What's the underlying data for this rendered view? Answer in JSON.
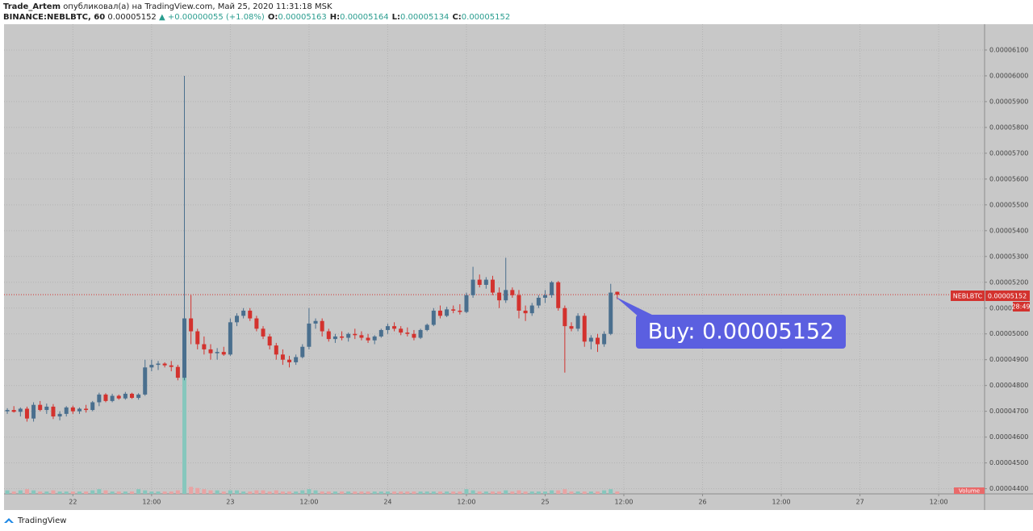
{
  "chart_data": {
    "type": "candlestick",
    "author": "Trade_Artem",
    "published": "опубликовал(а) на TradingView.com, Май 25, 2020 11:31:18 MSK",
    "symbol": "BINANCE:NEBLBTC, 60",
    "last": "0.00005152",
    "change": "▲ +0.00000055 (+1.08%)",
    "ohlc_labels": [
      {
        "label": "O:",
        "value": "0.00005163"
      },
      {
        "label": "H:",
        "value": "0.00005164"
      },
      {
        "label": "L:",
        "value": "0.00005134"
      },
      {
        "label": "C:",
        "value": "0.00005152"
      }
    ],
    "price_tag": {
      "symbol": "NEBLBTC",
      "price": "0.00005152",
      "countdown": "28:49"
    },
    "price_line": 5.152e-05,
    "annotation": "Buy: 0.00005152",
    "volume_label": "Volume",
    "brand": "TradingView",
    "up_color": "#4a6f8e",
    "down_color": "#d3322e",
    "volume_up_color": "#86c7bd",
    "volume_down_color": "#e9a3a3",
    "grid": true,
    "xlim": [
      -0.5,
      149
    ],
    "xticks": [
      {
        "value": 10,
        "label": "22"
      },
      {
        "value": 22,
        "label": "12:00"
      },
      {
        "value": 34,
        "label": "23"
      },
      {
        "value": 46,
        "label": "12:00"
      },
      {
        "value": 58,
        "label": "24"
      },
      {
        "value": 70,
        "label": "12:00"
      },
      {
        "value": 82,
        "label": "25"
      },
      {
        "value": 94,
        "label": "12:00"
      },
      {
        "value": 106,
        "label": "26"
      },
      {
        "value": 118,
        "label": "12:00"
      },
      {
        "value": 130,
        "label": "27"
      },
      {
        "value": 142,
        "label": "12:00"
      }
    ],
    "ylim": [
      4.38e-05,
      6.2e-05
    ],
    "yticks": [
      {
        "value": 4.4e-05,
        "label": "0.00004400"
      },
      {
        "value": 4.5e-05,
        "label": "0.00004500"
      },
      {
        "value": 4.6e-05,
        "label": "0.00004600"
      },
      {
        "value": 4.7e-05,
        "label": "0.00004700"
      },
      {
        "value": 4.8e-05,
        "label": "0.00004800"
      },
      {
        "value": 4.9e-05,
        "label": "0.00004900"
      },
      {
        "value": 5e-05,
        "label": "0.00005000"
      },
      {
        "value": 5.1e-05,
        "label": "0.00005100"
      },
      {
        "value": 5.2e-05,
        "label": "0.00005200"
      },
      {
        "value": 5.3e-05,
        "label": "0.00005300"
      },
      {
        "value": 5.4e-05,
        "label": "0.00005400"
      },
      {
        "value": 5.5e-05,
        "label": "0.00005500"
      },
      {
        "value": 5.6e-05,
        "label": "0.00005600"
      },
      {
        "value": 5.7e-05,
        "label": "0.00005700"
      },
      {
        "value": 5.8e-05,
        "label": "0.00005800"
      },
      {
        "value": 5.9e-05,
        "label": "0.00005900"
      },
      {
        "value": 6e-05,
        "label": "0.00006000"
      },
      {
        "value": 6.1e-05,
        "label": "0.00006100"
      }
    ],
    "volume_ylim": [
      0,
      100
    ],
    "open": [
      4.7e-05,
      4.705e-05,
      4.698e-05,
      4.71e-05,
      4.672e-05,
      4.725e-05,
      4.705e-05,
      4.718e-05,
      4.68e-05,
      4.69e-05,
      4.715e-05,
      4.7e-05,
      4.71e-05,
      4.705e-05,
      4.735e-05,
      4.765e-05,
      4.74e-05,
      4.76e-05,
      4.75e-05,
      4.768e-05,
      4.752e-05,
      4.765e-05,
      4.87e-05,
      4.88e-05,
      4.885e-05,
      4.878e-05,
      4.872e-05,
      4.83e-05,
      5.06e-05,
      5.01e-05,
      4.96e-05,
      4.94e-05,
      4.925e-05,
      4.93e-05,
      4.92e-05,
      5.045e-05,
      5.07e-05,
      5.09e-05,
      5.06e-05,
      5.02e-05,
      4.99e-05,
      4.955e-05,
      4.92e-05,
      4.9e-05,
      4.89e-05,
      4.91e-05,
      4.95e-05,
      5.04e-05,
      5.05e-05,
      5.01e-05,
      4.98e-05,
      4.99e-05,
      4.985e-05,
      5e-05,
      4.995e-05,
      4.985e-05,
      4.975e-05,
      4.99e-05,
      5.015e-05,
      5.03e-05,
      5.02e-05,
      5.005e-05,
      5e-05,
      4.985e-05,
      5.015e-05,
      5.035e-05,
      5.09e-05,
      5.07e-05,
      5.095e-05,
      5.09e-05,
      5.085e-05,
      5.15e-05,
      5.21e-05,
      5.19e-05,
      5.21e-05,
      5.16e-05,
      5.13e-05,
      5.17e-05,
      5.15e-05,
      5.09e-05,
      5.08e-05,
      5.11e-05,
      5.14e-05,
      5.15e-05,
      5.2e-05,
      5.1e-05,
      5.03e-05,
      5.02e-05,
      5.07e-05,
      4.97e-05,
      4.985e-05,
      4.96e-05,
      5e-05,
      5.163e-05
    ],
    "high": [
      4.712e-05,
      4.72e-05,
      4.715e-05,
      4.718e-05,
      4.735e-05,
      4.74e-05,
      4.73e-05,
      4.728e-05,
      4.7e-05,
      4.72e-05,
      4.722e-05,
      4.715e-05,
      4.725e-05,
      4.74e-05,
      4.772e-05,
      4.77e-05,
      4.768e-05,
      4.765e-05,
      4.775e-05,
      4.772e-05,
      4.77e-05,
      4.9e-05,
      4.9e-05,
      4.895e-05,
      4.89e-05,
      4.895e-05,
      4.88e-05,
      6e-05,
      5.15e-05,
      5.02e-05,
      4.99e-05,
      4.96e-05,
      4.945e-05,
      4.95e-05,
      5.06e-05,
      5.08e-05,
      5.1e-05,
      5.1e-05,
      5.07e-05,
      5.03e-05,
      5e-05,
      4.965e-05,
      4.94e-05,
      4.915e-05,
      4.92e-05,
      4.96e-05,
      5.1e-05,
      5.06e-05,
      5.06e-05,
      5.02e-05,
      5e-05,
      5.01e-05,
      5.005e-05,
      5.02e-05,
      5.01e-05,
      5e-05,
      4.995e-05,
      5.02e-05,
      5.04e-05,
      5.045e-05,
      5.03e-05,
      5.025e-05,
      5.015e-05,
      5.02e-05,
      5.04e-05,
      5.1e-05,
      5.11e-05,
      5.105e-05,
      5.11e-05,
      5.115e-05,
      5.16e-05,
      5.26e-05,
      5.23e-05,
      5.22e-05,
      5.225e-05,
      5.18e-05,
      5.295e-05,
      5.18e-05,
      5.17e-05,
      5.11e-05,
      5.12e-05,
      5.15e-05,
      5.17e-05,
      5.205e-05,
      5.205e-05,
      5.11e-05,
      5.045e-05,
      5.08e-05,
      5.08e-05,
      4.995e-05,
      5e-05,
      5.01e-05,
      5.194e-05,
      5.164e-05
    ],
    "low": [
      4.69e-05,
      4.695e-05,
      4.68e-05,
      4.66e-05,
      4.66e-05,
      4.7e-05,
      4.69e-05,
      4.67e-05,
      4.665e-05,
      4.68e-05,
      4.69e-05,
      4.69e-05,
      4.695e-05,
      4.7e-05,
      4.72e-05,
      4.735e-05,
      4.735e-05,
      4.745e-05,
      4.745e-05,
      4.748e-05,
      4.745e-05,
      4.76e-05,
      4.855e-05,
      4.86e-05,
      4.87e-05,
      4.855e-05,
      4.82e-05,
      4.82e-05,
      4.96e-05,
      4.94e-05,
      4.92e-05,
      4.9e-05,
      4.9e-05,
      4.915e-05,
      4.915e-05,
      5.03e-05,
      5.06e-05,
      5.05e-05,
      5.01e-05,
      4.98e-05,
      4.94e-05,
      4.9e-05,
      4.88e-05,
      4.87e-05,
      4.88e-05,
      4.905e-05,
      4.94e-05,
      5.02e-05,
      4.99e-05,
      4.97e-05,
      4.965e-05,
      4.975e-05,
      4.97e-05,
      4.98e-05,
      4.975e-05,
      4.965e-05,
      4.96e-05,
      4.985e-05,
      5e-05,
      5.01e-05,
      4.995e-05,
      4.99e-05,
      4.975e-05,
      4.98e-05,
      5.01e-05,
      5.03e-05,
      5.06e-05,
      5.065e-05,
      5.08e-05,
      5.075e-05,
      5.08e-05,
      5.14e-05,
      5.18e-05,
      5.175e-05,
      5.15e-05,
      5.1e-05,
      5.12e-05,
      5.14e-05,
      5.06e-05,
      5.05e-05,
      5.07e-05,
      5.1e-05,
      5.12e-05,
      5.14e-05,
      5.09e-05,
      4.85e-05,
      5.01e-05,
      5.01e-05,
      4.95e-05,
      4.94e-05,
      4.93e-05,
      4.95e-05,
      4.995e-05,
      5.134e-05
    ],
    "close": [
      4.705e-05,
      4.698e-05,
      4.71e-05,
      4.672e-05,
      4.725e-05,
      4.705e-05,
      4.718e-05,
      4.68e-05,
      4.69e-05,
      4.715e-05,
      4.7e-05,
      4.71e-05,
      4.705e-05,
      4.735e-05,
      4.765e-05,
      4.74e-05,
      4.76e-05,
      4.75e-05,
      4.768e-05,
      4.752e-05,
      4.765e-05,
      4.87e-05,
      4.88e-05,
      4.885e-05,
      4.878e-05,
      4.872e-05,
      4.83e-05,
      5.06e-05,
      5.01e-05,
      4.96e-05,
      4.94e-05,
      4.925e-05,
      4.93e-05,
      4.92e-05,
      5.045e-05,
      5.07e-05,
      5.09e-05,
      5.06e-05,
      5.02e-05,
      4.99e-05,
      4.955e-05,
      4.92e-05,
      4.9e-05,
      4.89e-05,
      4.91e-05,
      4.95e-05,
      5.04e-05,
      5.05e-05,
      5.01e-05,
      4.98e-05,
      4.99e-05,
      4.985e-05,
      5e-05,
      4.995e-05,
      4.985e-05,
      4.975e-05,
      4.99e-05,
      5.015e-05,
      5.03e-05,
      5.02e-05,
      5.005e-05,
      5e-05,
      4.985e-05,
      5.015e-05,
      5.035e-05,
      5.09e-05,
      5.07e-05,
      5.095e-05,
      5.09e-05,
      5.085e-05,
      5.15e-05,
      5.21e-05,
      5.19e-05,
      5.21e-05,
      5.16e-05,
      5.13e-05,
      5.17e-05,
      5.15e-05,
      5.09e-05,
      5.08e-05,
      5.11e-05,
      5.14e-05,
      5.15e-05,
      5.2e-05,
      5.1e-05,
      5.03e-05,
      5.02e-05,
      5.07e-05,
      4.97e-05,
      4.985e-05,
      4.96e-05,
      5e-05,
      5.16e-05,
      5.152e-05
    ],
    "volume": [
      3,
      2,
      3,
      4,
      3,
      2,
      2,
      3,
      2,
      2,
      2,
      2,
      2,
      3,
      4,
      3,
      2,
      2,
      2,
      2,
      4,
      3,
      2,
      2,
      2,
      2,
      3,
      100,
      6,
      5,
      4,
      3,
      3,
      2,
      3,
      3,
      2,
      2,
      3,
      3,
      2,
      3,
      2,
      2,
      2,
      3,
      4,
      3,
      2,
      2,
      2,
      2,
      2,
      2,
      2,
      2,
      2,
      2,
      2,
      2,
      2,
      2,
      2,
      2,
      2,
      2,
      2,
      2,
      2,
      2,
      4,
      3,
      2,
      2,
      2,
      2,
      3,
      2,
      3,
      2,
      2,
      2,
      2,
      3,
      3,
      4,
      2,
      2,
      2,
      2,
      2,
      3,
      4,
      2
    ]
  }
}
